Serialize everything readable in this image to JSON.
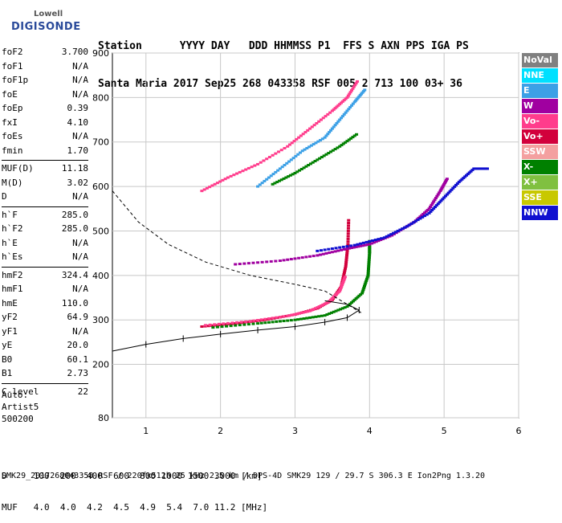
{
  "logo": {
    "line1": "Lowell",
    "line2": "DIGISONDE"
  },
  "header": {
    "row1": "Station      YYYY DAY   DDD HHMMSS P1  FFS S AXN PPS IGA PS",
    "row2": "Santa Maria 2017 Sep25 268 043358 RSF 005 2 713 100 03+ 36"
  },
  "params": [
    [
      [
        "foF2",
        "3.700"
      ],
      [
        "foF1",
        "N/A"
      ],
      [
        "foF1p",
        "N/A"
      ],
      [
        "foE",
        "N/A"
      ],
      [
        "foEp",
        "0.39"
      ],
      [
        "fxI",
        "4.10"
      ],
      [
        "foEs",
        "N/A"
      ],
      [
        "fmin",
        "1.70"
      ]
    ],
    [
      [
        "MUF(D)",
        "11.18"
      ],
      [
        "M(D)",
        "3.02"
      ],
      [
        "D",
        "N/A"
      ]
    ],
    [
      [
        "h`F",
        "285.0"
      ],
      [
        "h`F2",
        "285.0"
      ],
      [
        "h`E",
        "N/A"
      ],
      [
        "h`Es",
        "N/A"
      ]
    ],
    [
      [
        "hmF2",
        "324.4"
      ],
      [
        "hmF1",
        "N/A"
      ],
      [
        "hmE",
        "110.0"
      ],
      [
        "yF2",
        "64.9"
      ],
      [
        "yF1",
        "N/A"
      ],
      [
        "yE",
        "20.0"
      ],
      [
        "B0",
        "60.1"
      ],
      [
        "B1",
        "2.73"
      ]
    ],
    [
      [
        "C-level",
        "22"
      ]
    ]
  ],
  "auto": {
    "line1": "Auto:",
    "line2": "Artist5",
    "line3": "500200"
  },
  "bottom": {
    "d_row": "D     100  200  400  600  800 1000 1500 3000 [km]",
    "muf_row": "MUF   4.0  4.0  4.2  4.5  4.9  5.4  7.0 11.2 [MHz]"
  },
  "footer": "SMK29_2017268043358.RSF / 220fx512h 25 kHz 2.5 km / DPS-4D SMK29 129 / 29.7 S 306.3 E Ion2Png 1.3.20",
  "legend": [
    {
      "label": "NoVal",
      "color": "#808080"
    },
    {
      "label": "NNE",
      "color": "#00e0ff"
    },
    {
      "label": "E",
      "color": "#3ca0e6"
    },
    {
      "label": "W",
      "color": "#a000a0"
    },
    {
      "label": "Vo-",
      "color": "#ff3c8c"
    },
    {
      "label": "Vo+",
      "color": "#d2003c"
    },
    {
      "label": "SSW",
      "color": "#f4a0a0"
    },
    {
      "label": "X-",
      "color": "#008000"
    },
    {
      "label": "X+",
      "color": "#80c040"
    },
    {
      "label": "SSE",
      "color": "#c8c800"
    },
    {
      "label": "NNW",
      "color": "#1010d0"
    }
  ],
  "chart_data": {
    "type": "scatter",
    "xlim": [
      0.55,
      6.0
    ],
    "ylim": [
      80,
      900
    ],
    "x_ticks": [
      "1",
      "2",
      "3",
      "4",
      "5",
      "6"
    ],
    "y_ticks": [
      "80",
      "200",
      "300",
      "400",
      "500",
      "600",
      "700",
      "800",
      "900"
    ],
    "grid": true,
    "series": [
      {
        "name": "Vo+",
        "color": "#d2003c",
        "points": [
          [
            1.75,
            285
          ],
          [
            2.2,
            292
          ],
          [
            2.6,
            300
          ],
          [
            3.0,
            312
          ],
          [
            3.3,
            326
          ],
          [
            3.5,
            345
          ],
          [
            3.62,
            375
          ],
          [
            3.68,
            420
          ],
          [
            3.71,
            470
          ],
          [
            3.72,
            530
          ]
        ]
      },
      {
        "name": "Vo-",
        "color": "#ff3c8c",
        "points": [
          [
            1.8,
            288
          ],
          [
            2.4,
            297
          ],
          [
            2.9,
            309
          ],
          [
            3.2,
            320
          ],
          [
            3.45,
            340
          ],
          [
            3.6,
            365
          ],
          [
            3.68,
            400
          ]
        ]
      },
      {
        "name": "X-",
        "color": "#008000",
        "points": [
          [
            1.9,
            283
          ],
          [
            2.5,
            292
          ],
          [
            3.0,
            300
          ],
          [
            3.4,
            310
          ],
          [
            3.7,
            330
          ],
          [
            3.9,
            360
          ],
          [
            3.98,
            400
          ],
          [
            4.0,
            450
          ],
          [
            4.0,
            480
          ]
        ]
      },
      {
        "name": "W",
        "color": "#a000a0",
        "points": [
          [
            2.2,
            425
          ],
          [
            2.8,
            433
          ],
          [
            3.3,
            445
          ],
          [
            3.7,
            460
          ],
          [
            4.0,
            470
          ],
          [
            4.3,
            490
          ],
          [
            4.6,
            520
          ],
          [
            4.8,
            550
          ],
          [
            4.95,
            590
          ],
          [
            5.05,
            620
          ]
        ]
      },
      {
        "name": "NNW",
        "color": "#1010d0",
        "points": [
          [
            3.3,
            455
          ],
          [
            3.8,
            468
          ],
          [
            4.2,
            485
          ],
          [
            4.5,
            510
          ],
          [
            4.8,
            540
          ],
          [
            5.0,
            575
          ],
          [
            5.2,
            610
          ],
          [
            5.4,
            640
          ],
          [
            5.6,
            640
          ]
        ]
      },
      {
        "name": "E",
        "color": "#3ca0e6",
        "points": [
          [
            2.5,
            600
          ],
          [
            2.8,
            640
          ],
          [
            3.1,
            680
          ],
          [
            3.4,
            710
          ],
          [
            3.6,
            750
          ],
          [
            3.8,
            790
          ],
          [
            3.95,
            820
          ]
        ]
      },
      {
        "name": "X- (high)",
        "color": "#008000",
        "points": [
          [
            2.7,
            605
          ],
          [
            3.0,
            630
          ],
          [
            3.3,
            660
          ],
          [
            3.6,
            690
          ],
          [
            3.85,
            720
          ]
        ]
      },
      {
        "name": "Vo- (high)",
        "color": "#ff3c8c",
        "points": [
          [
            1.75,
            590
          ],
          [
            2.1,
            620
          ],
          [
            2.5,
            650
          ],
          [
            2.9,
            690
          ],
          [
            3.2,
            730
          ],
          [
            3.5,
            770
          ],
          [
            3.7,
            800
          ],
          [
            3.85,
            840
          ]
        ]
      }
    ],
    "profile_lines": [
      {
        "style": "dashed",
        "points": [
          [
            0.55,
            590
          ],
          [
            0.9,
            520
          ],
          [
            1.3,
            470
          ],
          [
            1.8,
            430
          ],
          [
            2.4,
            400
          ],
          [
            3.0,
            380
          ],
          [
            3.4,
            365
          ],
          [
            3.7,
            335
          ],
          [
            3.9,
            315
          ]
        ]
      },
      {
        "style": "solid",
        "points": [
          [
            0.55,
            230
          ],
          [
            1.0,
            245
          ],
          [
            1.5,
            258
          ],
          [
            2.0,
            268
          ],
          [
            2.5,
            277
          ],
          [
            3.0,
            285
          ],
          [
            3.4,
            295
          ],
          [
            3.7,
            305
          ],
          [
            3.86,
            322
          ],
          [
            3.7,
            335
          ],
          [
            3.4,
            343
          ]
        ]
      }
    ]
  }
}
